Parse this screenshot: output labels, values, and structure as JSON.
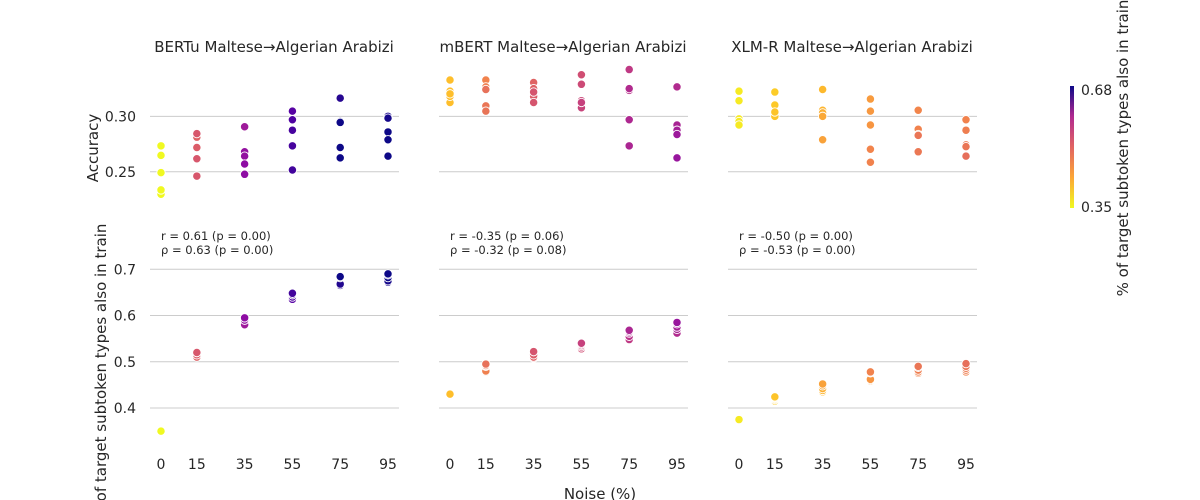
{
  "chart_data": {
    "type": "scatter",
    "xlabel": "Noise (%)",
    "x_ticks": [
      0,
      15,
      35,
      55,
      75,
      95
    ],
    "colormap": "plasma",
    "colorbar": {
      "label": "% of target subtoken types also in train",
      "min": 0.35,
      "max": 0.68,
      "min_label": "0.35",
      "max_label": "0.68"
    },
    "rows": [
      {
        "ylabel": "Accuracy",
        "ylim": [
          0.22,
          0.34
        ],
        "y_ticks": [
          0.25,
          0.3
        ],
        "y_tick_labels": [
          "0.25",
          "0.30"
        ]
      },
      {
        "ylabel": "% of target subtoken types also in train",
        "ylim": [
          0.32,
          0.72
        ],
        "y_ticks": [
          0.4,
          0.5,
          0.6,
          0.7
        ],
        "y_tick_labels": [
          "0.4",
          "0.5",
          "0.6",
          "0.7"
        ]
      }
    ],
    "panels": [
      {
        "title": "BERTu Maltese→Algerian Arabizi",
        "r_text": "r = 0.61 (p = 0.00)",
        "rho_text": "ρ = 0.63 (p = 0.00)",
        "overlap": [
          {
            "x": 0,
            "values": [
              0.35,
              0.35,
              0.35,
              0.35,
              0.35
            ]
          },
          {
            "x": 15,
            "values": [
              0.51,
              0.515,
              0.52,
              0.52,
              0.52
            ]
          },
          {
            "x": 35,
            "values": [
              0.58,
              0.59,
              0.59,
              0.595,
              0.595
            ]
          },
          {
            "x": 55,
            "values": [
              0.635,
              0.64,
              0.645,
              0.645,
              0.648
            ]
          },
          {
            "x": 75,
            "values": [
              0.665,
              0.668,
              0.682,
              0.684,
              0.684
            ]
          },
          {
            "x": 95,
            "values": [
              0.672,
              0.675,
              0.682,
              0.688,
              0.69
            ]
          }
        ],
        "accuracy": [
          {
            "x": 0,
            "values": [
              0.2734,
              0.2648,
              0.2492,
              0.2297,
              0.2336
            ]
          },
          {
            "x": 15,
            "values": [
              0.2812,
              0.2719,
              0.2617,
              0.2461,
              0.2844
            ]
          },
          {
            "x": 35,
            "values": [
              0.2906,
              0.268,
              0.2641,
              0.257,
              0.2477
            ]
          },
          {
            "x": 55,
            "values": [
              0.3047,
              0.2969,
              0.2875,
              0.2734,
              0.2516
            ]
          },
          {
            "x": 75,
            "values": [
              0.3164,
              0.2953,
              0.2945,
              0.2719,
              0.2625
            ]
          },
          {
            "x": 95,
            "values": [
              0.3,
              0.2984,
              0.2859,
              0.2789,
              0.2641
            ]
          }
        ]
      },
      {
        "title": "mBERT Maltese→Algerian Arabizi",
        "r_text": "r = -0.35 (p = 0.06)",
        "rho_text": "ρ = -0.32 (p = 0.08)",
        "overlap": [
          {
            "x": 0,
            "values": [
              0.43,
              0.43,
              0.43,
              0.43,
              0.43
            ]
          },
          {
            "x": 15,
            "values": [
              0.478,
              0.48,
              0.49,
              0.492,
              0.495
            ]
          },
          {
            "x": 35,
            "values": [
              0.508,
              0.51,
              0.515,
              0.522,
              0.522
            ]
          },
          {
            "x": 55,
            "values": [
              0.528,
              0.532,
              0.535,
              0.538,
              0.54
            ]
          },
          {
            "x": 75,
            "values": [
              0.548,
              0.555,
              0.562,
              0.565,
              0.568
            ]
          },
          {
            "x": 95,
            "values": [
              0.562,
              0.57,
              0.575,
              0.582,
              0.585
            ]
          }
        ]
      },
      {
        "title": "XLM-R Maltese→Algerian Arabizi",
        "r_text": "r = -0.50 (p = 0.00)",
        "rho_text": "ρ = -0.53 (p = 0.00)",
        "overlap": [
          {
            "x": 0,
            "values": [
              0.375,
              0.375,
              0.375,
              0.375,
              0.375
            ]
          },
          {
            "x": 15,
            "values": [
              0.415,
              0.418,
              0.42,
              0.422,
              0.424
            ]
          },
          {
            "x": 35,
            "values": [
              0.435,
              0.438,
              0.442,
              0.448,
              0.452
            ]
          },
          {
            "x": 55,
            "values": [
              0.458,
              0.46,
              0.462,
              0.476,
              0.478
            ]
          },
          {
            "x": 75,
            "values": [
              0.475,
              0.478,
              0.482,
              0.488,
              0.49
            ]
          },
          {
            "x": 95,
            "values": [
              0.478,
              0.482,
              0.486,
              0.49,
              0.496
            ]
          }
        ]
      }
    ]
  }
}
